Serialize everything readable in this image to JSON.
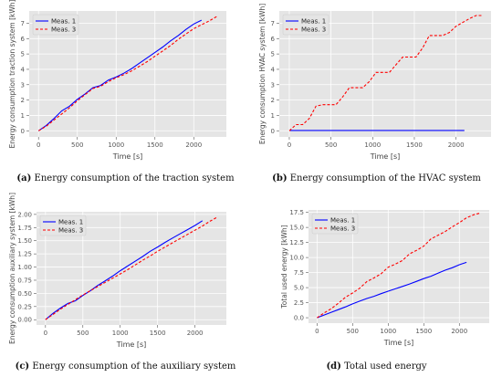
{
  "chart_data": [
    {
      "type": "line",
      "panel_letter": "(a)",
      "caption": "Energy consumption of the traction system",
      "xlabel": "Time [s]",
      "ylabel": "Energy consumption traction system [kWh]",
      "xlim": [
        -120,
        2420
      ],
      "ylim": [
        -0.4,
        7.8
      ],
      "xticks": [
        0,
        500,
        1000,
        1500,
        2000
      ],
      "yticks": [
        0,
        1,
        2,
        3,
        4,
        5,
        6,
        7
      ],
      "legend": "top-left",
      "series": [
        {
          "name": "Meas. 1",
          "color": "#0000ff",
          "style": "solid",
          "x": [
            0,
            100,
            200,
            300,
            400,
            500,
            600,
            700,
            800,
            900,
            1000,
            1100,
            1200,
            1300,
            1400,
            1500,
            1600,
            1700,
            1800,
            1900,
            2000,
            2100
          ],
          "y": [
            0,
            0.35,
            0.8,
            1.3,
            1.6,
            2.05,
            2.4,
            2.8,
            2.95,
            3.3,
            3.5,
            3.75,
            4.05,
            4.4,
            4.75,
            5.1,
            5.45,
            5.85,
            6.2,
            6.6,
            6.95,
            7.2
          ]
        },
        {
          "name": "Meas. 3",
          "color": "#ff0000",
          "style": "dashed",
          "x": [
            0,
            100,
            200,
            300,
            400,
            500,
            600,
            700,
            800,
            900,
            1000,
            1100,
            1200,
            1300,
            1400,
            1500,
            1600,
            1700,
            1800,
            1900,
            2000,
            2100,
            2200,
            2300
          ],
          "y": [
            0,
            0.3,
            0.7,
            1.1,
            1.5,
            1.95,
            2.35,
            2.75,
            2.9,
            3.2,
            3.45,
            3.65,
            3.9,
            4.2,
            4.5,
            4.85,
            5.2,
            5.55,
            5.95,
            6.3,
            6.65,
            6.9,
            7.15,
            7.45
          ]
        }
      ]
    },
    {
      "type": "line",
      "panel_letter": "(b)",
      "caption": "Energy consumption of the HVAC system",
      "xlabel": "Time [s]",
      "ylabel": "Energy consumption HVAC system [kWh]",
      "xlim": [
        -120,
        2420
      ],
      "ylim": [
        -0.4,
        7.8
      ],
      "xticks": [
        0,
        500,
        1000,
        1500,
        2000
      ],
      "yticks": [
        0,
        1,
        2,
        3,
        4,
        5,
        6,
        7
      ],
      "legend": "top-left",
      "series": [
        {
          "name": "Meas. 1",
          "color": "#0000ff",
          "style": "solid",
          "x": [
            0,
            2100
          ],
          "y": [
            0.02,
            0.02
          ]
        },
        {
          "name": "Meas. 3",
          "color": "#ff0000",
          "style": "dashed",
          "x": [
            0,
            80,
            160,
            240,
            320,
            400,
            560,
            640,
            720,
            880,
            960,
            1040,
            1200,
            1280,
            1360,
            1520,
            1600,
            1680,
            1840,
            1920,
            2000,
            2160,
            2240,
            2320
          ],
          "y": [
            0,
            0.4,
            0.4,
            0.8,
            1.6,
            1.7,
            1.7,
            2.2,
            2.8,
            2.8,
            3.2,
            3.8,
            3.8,
            4.3,
            4.8,
            4.8,
            5.4,
            6.2,
            6.2,
            6.4,
            6.8,
            7.3,
            7.5,
            7.5
          ]
        }
      ]
    },
    {
      "type": "line",
      "panel_letter": "(c)",
      "caption": "Energy consumption of the auxiliary system",
      "xlabel": "Time [s]",
      "ylabel": "Energy consumption auxiliary system [kWh]",
      "xlim": [
        -120,
        2420
      ],
      "ylim": [
        -0.1,
        2.05
      ],
      "xticks": [
        0,
        500,
        1000,
        1500,
        2000
      ],
      "yticks": [
        0.0,
        0.25,
        0.5,
        0.75,
        1.0,
        1.25,
        1.5,
        1.75,
        2.0
      ],
      "legend": "top-left",
      "series": [
        {
          "name": "Meas. 1",
          "color": "#0000ff",
          "style": "solid",
          "x": [
            0,
            100,
            200,
            300,
            400,
            500,
            600,
            700,
            800,
            900,
            1000,
            1100,
            1200,
            1300,
            1400,
            1500,
            1600,
            1700,
            1800,
            1900,
            2000,
            2100
          ],
          "y": [
            0,
            0.12,
            0.22,
            0.31,
            0.36,
            0.46,
            0.55,
            0.65,
            0.74,
            0.83,
            0.93,
            1.02,
            1.11,
            1.2,
            1.3,
            1.38,
            1.47,
            1.55,
            1.63,
            1.71,
            1.79,
            1.88
          ]
        },
        {
          "name": "Meas. 3",
          "color": "#ff0000",
          "style": "dashed",
          "x": [
            0,
            100,
            200,
            300,
            400,
            500,
            600,
            700,
            800,
            900,
            1000,
            1100,
            1200,
            1300,
            1400,
            1500,
            1600,
            1700,
            1800,
            1900,
            2000,
            2100,
            2200,
            2300
          ],
          "y": [
            0,
            0.1,
            0.2,
            0.29,
            0.38,
            0.47,
            0.55,
            0.63,
            0.71,
            0.79,
            0.87,
            0.95,
            1.04,
            1.13,
            1.21,
            1.3,
            1.38,
            1.46,
            1.54,
            1.62,
            1.7,
            1.78,
            1.87,
            1.95
          ]
        }
      ]
    },
    {
      "type": "line",
      "panel_letter": "(d)",
      "caption": "Total used energy",
      "xlabel": "Time [s]",
      "ylabel": "Total used energy [kWh]",
      "xlim": [
        -120,
        2420
      ],
      "ylim": [
        -0.9,
        17.9
      ],
      "xticks": [
        0,
        500,
        1000,
        1500,
        2000
      ],
      "yticks": [
        0.0,
        2.5,
        5.0,
        7.5,
        10.0,
        12.5,
        15.0,
        17.5
      ],
      "legend": "top-left",
      "series": [
        {
          "name": "Meas. 1",
          "color": "#0000ff",
          "style": "solid",
          "x": [
            0,
            100,
            200,
            300,
            400,
            500,
            600,
            700,
            800,
            900,
            1000,
            1100,
            1200,
            1300,
            1400,
            1500,
            1600,
            1700,
            1800,
            1900,
            2000,
            2100
          ],
          "y": [
            0,
            0.45,
            0.9,
            1.35,
            1.8,
            2.3,
            2.75,
            3.2,
            3.55,
            4.0,
            4.4,
            4.8,
            5.2,
            5.6,
            6.05,
            6.5,
            6.9,
            7.4,
            7.9,
            8.3,
            8.8,
            9.2
          ]
        },
        {
          "name": "Meas. 3",
          "color": "#ff0000",
          "style": "dashed",
          "x": [
            0,
            100,
            200,
            300,
            400,
            500,
            600,
            700,
            800,
            900,
            1000,
            1100,
            1200,
            1300,
            1400,
            1500,
            1600,
            1700,
            1800,
            1900,
            2000,
            2100,
            2200,
            2300
          ],
          "y": [
            0,
            0.8,
            1.5,
            2.4,
            3.4,
            4.1,
            4.9,
            6.0,
            6.6,
            7.3,
            8.4,
            8.9,
            9.5,
            10.6,
            11.2,
            11.9,
            13.1,
            13.7,
            14.3,
            15.1,
            15.8,
            16.6,
            17.1,
            17.4
          ]
        }
      ]
    }
  ]
}
